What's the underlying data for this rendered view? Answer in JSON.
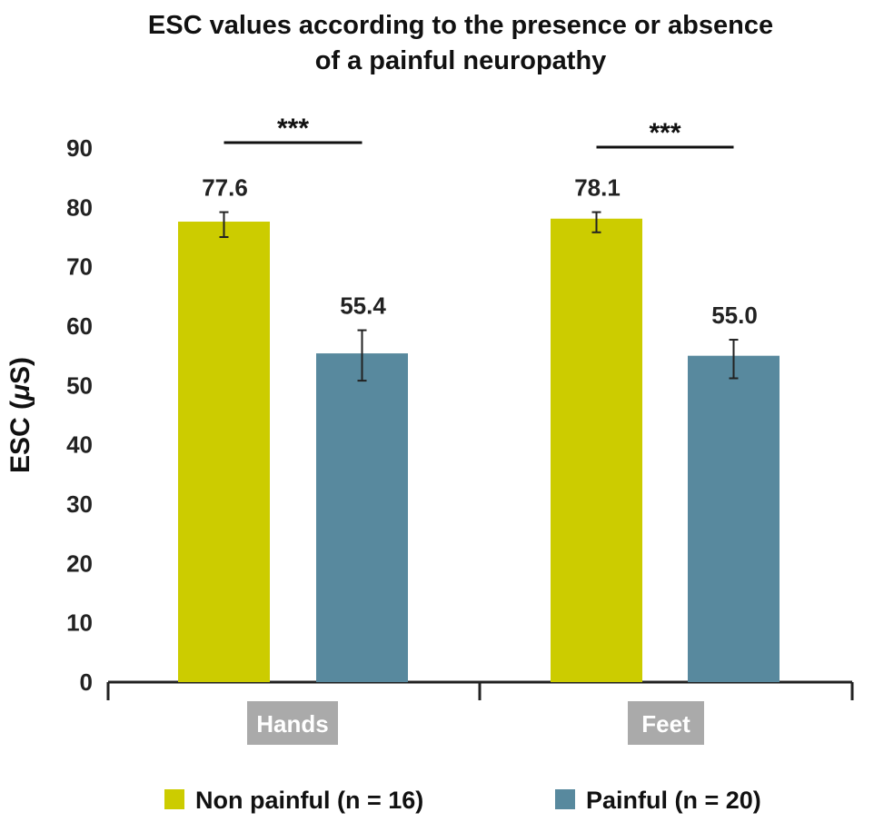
{
  "chart_data": {
    "type": "bar",
    "title_lines": [
      "ESC values according to the presence or absence",
      "of a painful neuropathy"
    ],
    "ylabel_prefix": "ESC (",
    "ylabel_mu": "μ",
    "ylabel_suffix": "S)",
    "ylim": [
      0,
      90
    ],
    "yticks": [
      "0",
      "10",
      "20",
      "30",
      "40",
      "50",
      "60",
      "70",
      "80",
      "90"
    ],
    "categories": [
      "Hands",
      "Feet"
    ],
    "series": [
      {
        "name": "Non painful (n = 16)",
        "color": "#cccc00",
        "values": [
          77.6,
          78.1
        ],
        "labels": [
          "77.6",
          "78.1"
        ],
        "err_low": [
          75.0,
          75.8
        ],
        "err_high": [
          79.2,
          79.2
        ]
      },
      {
        "name": "Painful (n = 20)",
        "color": "#58899e",
        "values": [
          55.4,
          55.0
        ],
        "labels": [
          "55.4",
          "55.0"
        ],
        "err_low": [
          50.8,
          51.2
        ],
        "err_high": [
          59.3,
          57.7
        ]
      }
    ],
    "significance": [
      "***",
      "***"
    ],
    "category_label_bg": "#aaaaaa",
    "grid": false,
    "legend_position": "bottom"
  }
}
